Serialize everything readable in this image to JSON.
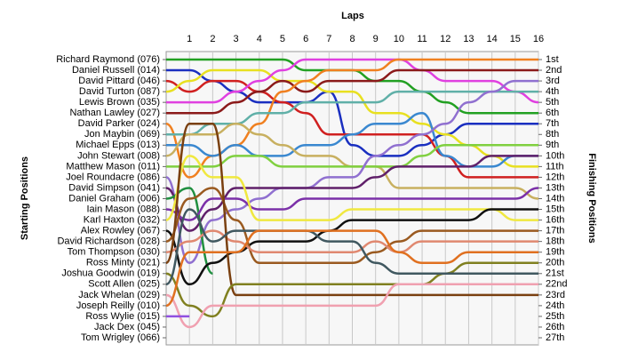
{
  "chart_data": {
    "type": "bump",
    "xlabel": "Laps",
    "ylabel": "Starting Positions",
    "y2label": "Finishing Positions",
    "xlim": [
      0,
      16
    ],
    "xticks": [
      1,
      2,
      3,
      4,
      5,
      6,
      7,
      8,
      9,
      10,
      11,
      12,
      13,
      14,
      15,
      16
    ],
    "ylim": [
      1,
      27
    ],
    "yticks": [
      {
        "value": 1,
        "label": "Richard Raymond (076)"
      },
      {
        "value": 2,
        "label": "Daniel Russell (014)"
      },
      {
        "value": 3,
        "label": "David Pittard (046)"
      },
      {
        "value": 4,
        "label": "David Turton (087)"
      },
      {
        "value": 5,
        "label": "Lewis Brown (035)"
      },
      {
        "value": 6,
        "label": "Nathan Lawley (027)"
      },
      {
        "value": 7,
        "label": "David Parker (024)"
      },
      {
        "value": 8,
        "label": "Jon Maybin (069)"
      },
      {
        "value": 9,
        "label": "Michael Epps (013)"
      },
      {
        "value": 10,
        "label": "John Stewart (008)"
      },
      {
        "value": 11,
        "label": "Matthew Mason (011)"
      },
      {
        "value": 12,
        "label": "Joel Roundacre (086)"
      },
      {
        "value": 13,
        "label": "David Simpson (041)"
      },
      {
        "value": 14,
        "label": "Daniel Graham (006)"
      },
      {
        "value": 15,
        "label": "Iain Mason (088)"
      },
      {
        "value": 16,
        "label": "Karl Haxton (032)"
      },
      {
        "value": 17,
        "label": "Alex Rowley (067)"
      },
      {
        "value": 18,
        "label": "David Richardson (028)"
      },
      {
        "value": 19,
        "label": "Tom Thompson (030)"
      },
      {
        "value": 20,
        "label": "Ross Minty (021)"
      },
      {
        "value": 21,
        "label": "Joshua Goodwin (019)"
      },
      {
        "value": 22,
        "label": "Scott Allen (025)"
      },
      {
        "value": 23,
        "label": "Jack Whelan (029)"
      },
      {
        "value": 24,
        "label": "Joseph Reilly (010)"
      },
      {
        "value": 25,
        "label": "Ross Wylie (015)"
      },
      {
        "value": 26,
        "label": "Jack Dex (045)"
      },
      {
        "value": 27,
        "label": "Tom Wrigley (066)"
      }
    ],
    "y2lim": [
      1,
      27
    ],
    "y2ticks": [
      {
        "value": 1,
        "label": "1st"
      },
      {
        "value": 2,
        "label": "2nd"
      },
      {
        "value": 3,
        "label": "3rd"
      },
      {
        "value": 4,
        "label": "4th"
      },
      {
        "value": 5,
        "label": "5th"
      },
      {
        "value": 6,
        "label": "6th"
      },
      {
        "value": 7,
        "label": "7th"
      },
      {
        "value": 8,
        "label": "8th"
      },
      {
        "value": 9,
        "label": "9th"
      },
      {
        "value": 10,
        "label": "10th"
      },
      {
        "value": 11,
        "label": "11th"
      },
      {
        "value": 12,
        "label": "12th"
      },
      {
        "value": 13,
        "label": "13th"
      },
      {
        "value": 14,
        "label": "14th"
      },
      {
        "value": 15,
        "label": "15th"
      },
      {
        "value": 16,
        "label": "16th"
      },
      {
        "value": 17,
        "label": "17th"
      },
      {
        "value": 18,
        "label": "18th"
      },
      {
        "value": 19,
        "label": "19th"
      },
      {
        "value": 20,
        "label": "20th"
      },
      {
        "value": 21,
        "label": "21st"
      },
      {
        "value": 22,
        "label": "22nd"
      },
      {
        "value": 23,
        "label": "23rd"
      },
      {
        "value": 24,
        "label": "24th"
      },
      {
        "value": 25,
        "label": "25th"
      },
      {
        "value": 26,
        "label": "26th"
      },
      {
        "value": 27,
        "label": "27th"
      }
    ],
    "grid": true,
    "series": [
      {
        "color": "#22a022",
        "values": [
          1,
          1,
          1,
          1,
          1,
          1,
          2,
          2,
          2,
          3,
          3,
          4,
          5,
          6,
          6,
          6,
          6
        ]
      },
      {
        "color": "#1a2fc0",
        "values": [
          2,
          2,
          3,
          4,
          5,
          5,
          5,
          4,
          9,
          10,
          10,
          9,
          8,
          7,
          7,
          7,
          7
        ]
      },
      {
        "color": "#d02020",
        "values": [
          3,
          4,
          3,
          3,
          4,
          5,
          6,
          8,
          8,
          8,
          8,
          8,
          10,
          12,
          12,
          12,
          12
        ]
      },
      {
        "color": "#e8e020",
        "values": [
          4,
          3,
          2,
          2,
          2,
          3,
          3,
          4,
          4,
          6,
          6,
          7,
          8,
          9,
          10,
          11,
          11
        ]
      },
      {
        "color": "#e040e0",
        "values": [
          5,
          5,
          5,
          4,
          3,
          2,
          1,
          1,
          1,
          1,
          1,
          2,
          3,
          3,
          3,
          4,
          5
        ]
      },
      {
        "color": "#8b1a1a",
        "values": [
          6,
          6,
          6,
          5,
          4,
          3,
          4,
          3,
          3,
          3,
          2,
          2,
          2,
          2,
          2,
          2,
          2
        ]
      },
      {
        "color": "#f08020",
        "values": [
          7,
          12,
          10,
          9,
          7,
          4,
          3,
          2,
          2,
          2,
          1,
          1,
          1,
          1,
          1,
          1,
          1
        ]
      },
      {
        "color": "#60b0a8",
        "values": [
          8,
          8,
          7,
          7,
          6,
          6,
          5,
          5,
          5,
          5,
          4,
          4,
          4,
          4,
          4,
          4,
          4
        ]
      },
      {
        "color": "#3a88d0",
        "values": [
          9,
          9,
          10,
          9,
          10,
          10,
          9,
          9,
          8,
          7,
          7,
          6,
          10,
          11,
          11,
          10,
          10
        ]
      },
      {
        "color": "#c8b060",
        "values": [
          10,
          8,
          8,
          7,
          8,
          9,
          10,
          10,
          11,
          11,
          13,
          13,
          13,
          13,
          13,
          13,
          14
        ]
      },
      {
        "color": "#80d040",
        "values": [
          11,
          11,
          11,
          10,
          10,
          11,
          11,
          11,
          11,
          11,
          11,
          10,
          9,
          9,
          9,
          9,
          9
        ]
      },
      {
        "color": "#9070d0",
        "values": [
          12,
          20,
          16,
          15,
          14,
          13,
          13,
          12,
          12,
          10,
          9,
          8,
          7,
          5,
          4,
          3,
          3
        ]
      },
      {
        "color": "#60206a",
        "values": [
          13,
          17,
          15,
          13,
          13,
          13,
          13,
          13,
          13,
          12,
          11,
          11,
          11,
          11,
          10,
          10,
          10
        ]
      },
      {
        "color": "#1f8f3f",
        "values": [
          14,
          13,
          21,
          null,
          null,
          null,
          null,
          null,
          null,
          null,
          null,
          null,
          null,
          null,
          null,
          null,
          null
        ]
      },
      {
        "color": "#7b30a8",
        "values": [
          15,
          16,
          14,
          14,
          15,
          15,
          14,
          14,
          14,
          14,
          14,
          14,
          14,
          14,
          14,
          14,
          13
        ]
      },
      {
        "color": "#f0e840",
        "values": [
          16,
          10,
          12,
          12,
          16,
          16,
          16,
          16,
          15,
          15,
          15,
          15,
          15,
          15,
          15,
          16,
          16
        ]
      },
      {
        "color": "#101010",
        "values": [
          17,
          22,
          20,
          19,
          18,
          18,
          18,
          17,
          16,
          16,
          16,
          16,
          16,
          16,
          15,
          15,
          15
        ]
      },
      {
        "color": "#9a5a20",
        "values": [
          18,
          14,
          13,
          16,
          20,
          20,
          20,
          20,
          20,
          19,
          18,
          17,
          17,
          17,
          17,
          17,
          17
        ]
      },
      {
        "color": "#e08870",
        "values": [
          19,
          18,
          17,
          18,
          19,
          19,
          19,
          19,
          19,
          18,
          19,
          18,
          18,
          18,
          18,
          18,
          18
        ]
      },
      {
        "color": "#7a4010",
        "values": [
          20,
          7,
          7,
          23,
          23,
          23,
          23,
          23,
          23,
          23,
          23,
          23,
          23,
          23,
          23,
          23,
          23
        ]
      },
      {
        "color": "#808020",
        "values": [
          21,
          24,
          25,
          22,
          22,
          22,
          22,
          22,
          22,
          22,
          22,
          22,
          21,
          20,
          20,
          20,
          20
        ]
      },
      {
        "color": "#405860",
        "values": [
          22,
          15,
          18,
          17,
          17,
          17,
          17,
          18,
          18,
          20,
          21,
          21,
          21,
          21,
          21,
          21,
          21
        ]
      },
      {
        "color": "#f0a0b0",
        "values": [
          23,
          26,
          24,
          24,
          24,
          24,
          24,
          24,
          24,
          24,
          22,
          22,
          22,
          22,
          22,
          22,
          22
        ]
      },
      {
        "color": "#e07020",
        "values": [
          24,
          19,
          19,
          19,
          17,
          17,
          17,
          17,
          17,
          17,
          19,
          20,
          20,
          19,
          19,
          19,
          19
        ]
      },
      {
        "color": "#9050e0",
        "values": [
          25,
          25,
          null,
          null,
          null,
          null,
          null,
          null,
          null,
          null,
          null,
          null,
          null,
          null,
          null,
          null,
          null
        ]
      },
      {
        "color": "#7070a0",
        "values": [
          26,
          null,
          null,
          null,
          null,
          null,
          null,
          null,
          null,
          null,
          null,
          null,
          null,
          null,
          null,
          null,
          null
        ]
      },
      {
        "color": "#a07070",
        "values": [
          27,
          null,
          null,
          null,
          null,
          null,
          null,
          null,
          null,
          null,
          null,
          null,
          null,
          null,
          null,
          null,
          null
        ]
      }
    ]
  }
}
